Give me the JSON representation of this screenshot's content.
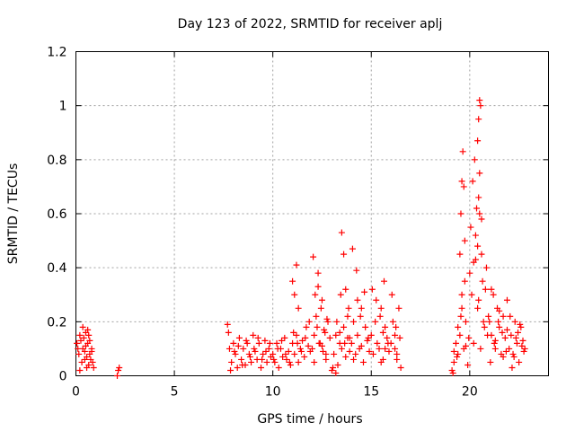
{
  "chart_data": {
    "type": "scatter",
    "title": "Day 123 of 2022, SRMTID for receiver aplj",
    "xlabel": "GPS time / hours",
    "ylabel": "SRMTID / TECUs",
    "xlim": [
      0,
      24
    ],
    "ylim": [
      0,
      1.2
    ],
    "xticks": [
      0,
      5,
      10,
      15,
      20
    ],
    "yticks": [
      0,
      0.2,
      0.4,
      0.6,
      0.8,
      1,
      1.2
    ],
    "xtick_labels": [
      "0",
      "5",
      "10",
      "15",
      "20"
    ],
    "ytick_labels": [
      "0",
      "0.2",
      "0.4",
      "0.6",
      "0.8",
      "1",
      "1.2"
    ],
    "grid": true,
    "marker": "+",
    "color": "#ff0000",
    "series": [
      {
        "name": "SRMTID",
        "x": [
          0.05,
          0.1,
          0.15,
          0.2,
          0.25,
          0.3,
          0.35,
          0.4,
          0.45,
          0.5,
          0.55,
          0.6,
          0.65,
          0.7,
          0.75,
          0.8,
          0.85,
          0.9,
          0.2,
          0.35,
          0.5,
          0.6,
          0.7,
          0.8,
          0.45,
          0.55,
          0.65,
          2.1,
          2.15,
          2.2,
          7.7,
          7.8,
          7.9,
          8.0,
          8.1,
          8.2,
          8.3,
          8.4,
          8.5,
          8.6,
          8.7,
          8.8,
          8.9,
          9.0,
          9.1,
          9.2,
          9.3,
          9.4,
          9.5,
          9.6,
          9.7,
          9.8,
          9.9,
          7.75,
          7.85,
          8.05,
          8.25,
          8.45,
          8.65,
          8.85,
          9.05,
          9.25,
          9.45,
          9.65,
          9.85,
          10.0,
          10.1,
          10.2,
          10.3,
          10.4,
          10.5,
          10.6,
          10.7,
          10.8,
          10.9,
          11.0,
          11.1,
          11.2,
          11.3,
          11.4,
          11.5,
          11.6,
          11.7,
          11.8,
          11.9,
          10.05,
          10.25,
          10.45,
          10.65,
          10.85,
          11.05,
          11.25,
          11.45,
          11.65,
          11.85,
          11.0,
          11.1,
          11.2,
          11.3,
          12.0,
          12.1,
          12.2,
          12.3,
          12.4,
          12.5,
          12.6,
          12.7,
          12.8,
          12.9,
          12.05,
          12.15,
          12.25,
          12.35,
          12.45,
          12.55,
          12.65,
          12.75,
          12.1,
          12.3,
          12.5,
          12.7,
          13.0,
          13.1,
          13.2,
          13.3,
          13.4,
          13.5,
          13.6,
          13.7,
          13.8,
          13.9,
          13.05,
          13.25,
          13.45,
          13.65,
          13.85,
          13.5,
          13.6,
          13.7,
          13.8,
          13.9,
          13.2,
          13.4,
          14.0,
          14.1,
          14.2,
          14.3,
          14.4,
          14.5,
          14.6,
          14.7,
          14.8,
          14.9,
          14.05,
          14.25,
          14.45,
          14.65,
          14.85,
          14.1,
          14.3,
          14.5,
          15.0,
          15.1,
          15.2,
          15.3,
          15.4,
          15.5,
          15.6,
          15.7,
          15.8,
          15.9,
          15.05,
          15.25,
          15.45,
          15.65,
          15.85,
          15.5,
          15.6,
          15.7,
          16.0,
          16.1,
          16.2,
          16.3,
          16.4,
          16.5,
          16.05,
          16.25,
          16.45,
          16.2,
          16.3,
          19.1,
          19.2,
          19.3,
          19.4,
          19.5,
          19.6,
          19.7,
          19.8,
          19.9,
          19.15,
          19.35,
          19.55,
          19.75,
          19.95,
          19.2,
          19.4,
          19.6,
          19.8,
          19.5,
          19.55,
          19.6,
          19.65,
          19.7,
          19.75,
          20.0,
          20.1,
          20.2,
          20.3,
          20.4,
          20.5,
          20.6,
          20.7,
          20.8,
          20.9,
          20.05,
          20.15,
          20.25,
          20.35,
          20.45,
          20.55,
          20.65,
          20.75,
          20.85,
          20.95,
          20.4,
          20.45,
          20.5,
          20.55,
          20.5,
          20.45,
          20.6,
          20.4,
          20.3,
          20.2,
          21.0,
          21.1,
          21.2,
          21.3,
          21.4,
          21.5,
          21.6,
          21.7,
          21.8,
          21.9,
          21.05,
          21.25,
          21.45,
          21.65,
          21.85,
          21.1,
          21.3,
          21.5,
          21.7,
          21.9,
          22.0,
          22.1,
          22.2,
          22.3,
          22.4,
          22.5,
          22.6,
          22.7,
          22.8,
          22.05,
          22.25,
          22.45,
          22.65,
          22.15,
          22.35,
          22.55,
          22.75
        ],
        "y": [
          0.12,
          0.1,
          0.08,
          0.15,
          0.13,
          0.05,
          0.1,
          0.14,
          0.09,
          0.16,
          0.07,
          0.12,
          0.04,
          0.08,
          0.06,
          0.1,
          0.05,
          0.03,
          0.02,
          0.18,
          0.11,
          0.17,
          0.13,
          0.09,
          0.06,
          0.03,
          0.15,
          0.0,
          0.02,
          0.03,
          0.19,
          0.1,
          0.05,
          0.12,
          0.08,
          0.03,
          0.14,
          0.06,
          0.1,
          0.04,
          0.12,
          0.08,
          0.05,
          0.15,
          0.09,
          0.06,
          0.12,
          0.03,
          0.08,
          0.13,
          0.05,
          0.1,
          0.07,
          0.16,
          0.02,
          0.09,
          0.11,
          0.04,
          0.13,
          0.07,
          0.1,
          0.14,
          0.06,
          0.09,
          0.12,
          0.08,
          0.05,
          0.12,
          0.03,
          0.1,
          0.07,
          0.14,
          0.06,
          0.09,
          0.04,
          0.12,
          0.08,
          0.15,
          0.05,
          0.1,
          0.13,
          0.07,
          0.18,
          0.11,
          0.09,
          0.06,
          0.1,
          0.13,
          0.08,
          0.05,
          0.16,
          0.12,
          0.09,
          0.14,
          0.2,
          0.35,
          0.3,
          0.41,
          0.25,
          0.1,
          0.15,
          0.22,
          0.38,
          0.12,
          0.28,
          0.17,
          0.08,
          0.2,
          0.14,
          0.44,
          0.3,
          0.18,
          0.12,
          0.25,
          0.09,
          0.16,
          0.21,
          0.05,
          0.33,
          0.11,
          0.06,
          0.02,
          0.08,
          0.15,
          0.04,
          0.12,
          0.1,
          0.18,
          0.07,
          0.22,
          0.14,
          0.03,
          0.2,
          0.3,
          0.12,
          0.25,
          0.53,
          0.45,
          0.32,
          0.14,
          0.09,
          0.01,
          0.16,
          0.12,
          0.2,
          0.08,
          0.15,
          0.1,
          0.25,
          0.05,
          0.18,
          0.13,
          0.09,
          0.47,
          0.39,
          0.22,
          0.31,
          0.14,
          0.06,
          0.28,
          0.11,
          0.15,
          0.08,
          0.2,
          0.12,
          0.1,
          0.25,
          0.06,
          0.18,
          0.14,
          0.09,
          0.32,
          0.28,
          0.22,
          0.35,
          0.12,
          0.05,
          0.16,
          0.1,
          0.12,
          0.2,
          0.15,
          0.08,
          0.25,
          0.03,
          0.3,
          0.18,
          0.14,
          0.1,
          0.06,
          0.02,
          0.05,
          0.12,
          0.08,
          0.15,
          0.3,
          0.1,
          0.2,
          0.04,
          0.01,
          0.07,
          0.22,
          0.35,
          0.14,
          0.09,
          0.18,
          0.25,
          0.11,
          0.45,
          0.6,
          0.72,
          0.83,
          0.7,
          0.5,
          0.38,
          0.3,
          0.42,
          0.52,
          0.25,
          0.6,
          0.45,
          0.2,
          0.32,
          0.15,
          0.55,
          0.72,
          0.8,
          0.62,
          0.28,
          0.1,
          0.35,
          0.18,
          0.4,
          0.22,
          0.87,
          0.95,
          1.02,
          1.0,
          0.75,
          0.66,
          0.58,
          0.48,
          0.43,
          0.12,
          0.2,
          0.15,
          0.3,
          0.1,
          0.25,
          0.18,
          0.08,
          0.22,
          0.14,
          0.28,
          0.05,
          0.12,
          0.2,
          0.16,
          0.09,
          0.32,
          0.13,
          0.24,
          0.07,
          0.17,
          0.1,
          0.15,
          0.08,
          0.2,
          0.12,
          0.05,
          0.18,
          0.13,
          0.1,
          0.22,
          0.07,
          0.16,
          0.11,
          0.03,
          0.14,
          0.19,
          0.09
        ]
      }
    ]
  }
}
